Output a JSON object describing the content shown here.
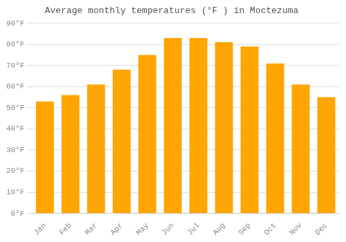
{
  "chart_data": {
    "type": "bar",
    "title": "Average monthly temperatures (°F ) in Moctezuma",
    "categories": [
      "Jan",
      "Feb",
      "Mar",
      "Apr",
      "May",
      "Jun",
      "Jul",
      "Aug",
      "Sep",
      "Oct",
      "Nov",
      "Dec"
    ],
    "values": [
      53,
      56,
      61,
      68,
      75,
      83,
      83,
      81,
      79,
      71,
      61,
      55
    ],
    "color": "#FFA500",
    "ylim": [
      0,
      90
    ],
    "yticks": [
      {
        "value": 0,
        "label": "0°F"
      },
      {
        "value": 10,
        "label": "10°F"
      },
      {
        "value": 20,
        "label": "20°F"
      },
      {
        "value": 30,
        "label": "30°F"
      },
      {
        "value": 40,
        "label": "40°F"
      },
      {
        "value": 50,
        "label": "50°F"
      },
      {
        "value": 60,
        "label": "60°F"
      },
      {
        "value": 70,
        "label": "70°F"
      },
      {
        "value": 80,
        "label": "80°F"
      },
      {
        "value": 90,
        "label": "90°F"
      }
    ],
    "grid": true
  }
}
